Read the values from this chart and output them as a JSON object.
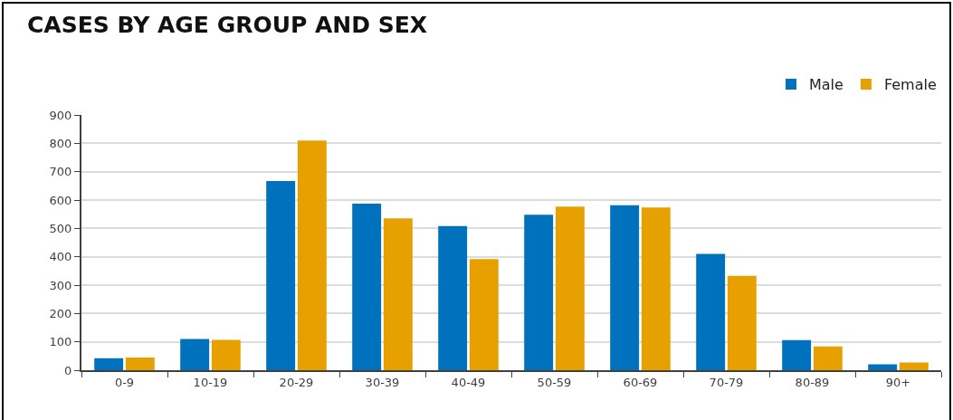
{
  "chart_data": {
    "type": "bar",
    "title": "CASES BY AGE GROUP AND SEX",
    "categories": [
      "0-9",
      "10-19",
      "20-29",
      "30-39",
      "40-49",
      "50-59",
      "60-69",
      "70-79",
      "80-89",
      "90+"
    ],
    "series": [
      {
        "name": "Male",
        "color": "#0071bc",
        "values": [
          42,
          110,
          667,
          587,
          508,
          548,
          582,
          410,
          106,
          21
        ]
      },
      {
        "name": "Female",
        "color": "#e6a100",
        "values": [
          45,
          107,
          810,
          535,
          392,
          577,
          574,
          333,
          84,
          27
        ]
      }
    ],
    "ylim": [
      0,
      900
    ],
    "yticks": [
      0,
      100,
      200,
      300,
      400,
      500,
      600,
      700,
      800,
      900
    ],
    "grid": "y",
    "legend": "top right"
  }
}
